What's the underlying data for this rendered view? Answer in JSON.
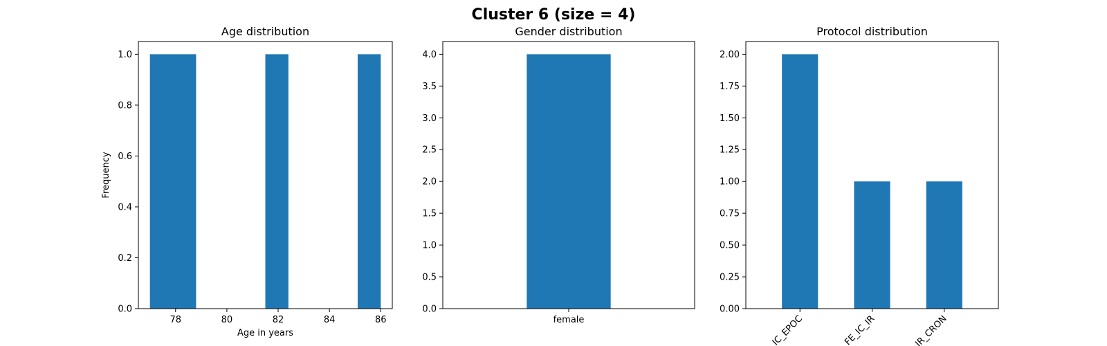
{
  "figure_title": "Cluster 6 (size = 4)",
  "colors": {
    "bar": "#1f77b4",
    "axis": "#000000",
    "background": "#ffffff"
  },
  "chart_data": [
    {
      "type": "bar",
      "subtype": "histogram",
      "title": "Age distribution",
      "xlabel": "Age in years",
      "ylabel": "Frequency",
      "xlim": [
        76.55,
        86.45
      ],
      "ylim": [
        0,
        1.05
      ],
      "xticks": [
        78,
        80,
        82,
        84,
        86
      ],
      "xtick_labels": [
        "78",
        "80",
        "82",
        "84",
        "86"
      ],
      "yticks": [
        0,
        0.2,
        0.4,
        0.6,
        0.8,
        1.0
      ],
      "ytick_labels": [
        "0.0",
        "0.2",
        "0.4",
        "0.6",
        "0.8",
        "1.0"
      ],
      "bins": [
        {
          "start": 77.0,
          "end": 78.8,
          "count": 1
        },
        {
          "start": 81.5,
          "end": 82.4,
          "count": 1
        },
        {
          "start": 85.1,
          "end": 86.0,
          "count": 1
        }
      ]
    },
    {
      "type": "bar",
      "title": "Gender distribution",
      "xlabel": "",
      "ylabel": "",
      "categories": [
        "female"
      ],
      "values": [
        4
      ],
      "ylim": [
        0,
        4.2
      ],
      "yticks": [
        0,
        0.5,
        1.0,
        1.5,
        2.0,
        2.5,
        3.0,
        3.5,
        4.0
      ],
      "ytick_labels": [
        "0.0",
        "0.5",
        "1.0",
        "1.5",
        "2.0",
        "2.5",
        "3.0",
        "3.5",
        "4.0"
      ],
      "tick_rotation": 0
    },
    {
      "type": "bar",
      "title": "Protocol distribution",
      "xlabel": "",
      "ylabel": "",
      "categories": [
        "IC_EPOC",
        "FE_IC_IR",
        "IR_CRON"
      ],
      "values": [
        2,
        1,
        1
      ],
      "ylim": [
        0,
        2.1
      ],
      "yticks": [
        0,
        0.25,
        0.5,
        0.75,
        1.0,
        1.25,
        1.5,
        1.75,
        2.0
      ],
      "ytick_labels": [
        "0.00",
        "0.25",
        "0.50",
        "0.75",
        "1.00",
        "1.25",
        "1.50",
        "1.75",
        "2.00"
      ],
      "tick_rotation": -45
    }
  ]
}
